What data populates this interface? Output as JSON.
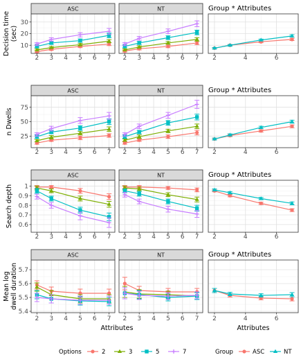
{
  "colors": {
    "2": "#F8766D",
    "3": "#7CAE00",
    "5": "#00BFC4",
    "7": "#C77CFF",
    "ASC": "#F8766D",
    "NT": "#00BFC4"
  },
  "strips": [
    "ASC",
    "NT"
  ],
  "x_axis_title": "Attributes",
  "legends": {
    "options": {
      "title": "Options",
      "items": [
        "2",
        "3",
        "5",
        "7"
      ]
    },
    "group": {
      "title": "Group",
      "items": [
        "ASC",
        "NT"
      ]
    }
  },
  "chart_data": [
    {
      "type": "line",
      "ylabel": [
        "Decision time",
        "(sec)"
      ],
      "ylim": [
        3,
        37
      ],
      "yticks": [
        10,
        20,
        30
      ],
      "xlim": [
        1.6,
        7.4
      ],
      "xticks": [
        2,
        3,
        4,
        5,
        6,
        7
      ],
      "x": [
        2,
        3,
        5,
        7
      ],
      "panels": [
        {
          "strip": "ASC",
          "series": [
            {
              "name": "2",
              "values": [
                4.5,
                6.5,
                9,
                11
              ],
              "errors": [
                0.8,
                0.9,
                1.0,
                1.3
              ]
            },
            {
              "name": "3",
              "values": [
                6,
                8,
                10.5,
                13.5
              ],
              "errors": [
                0.8,
                0.9,
                1.1,
                1.3
              ]
            },
            {
              "name": "5",
              "values": [
                9,
                12,
                14,
                18.5
              ],
              "errors": [
                1.0,
                1.2,
                1.4,
                2.0
              ]
            },
            {
              "name": "7",
              "values": [
                11,
                15,
                19,
                22
              ],
              "errors": [
                1.2,
                1.4,
                1.8,
                2.5
              ]
            }
          ]
        },
        {
          "strip": "NT",
          "series": [
            {
              "name": "2",
              "values": [
                5,
                7,
                9,
                12
              ],
              "errors": [
                0.9,
                1.0,
                1.1,
                1.5
              ]
            },
            {
              "name": "3",
              "values": [
                6,
                8.5,
                12,
                15
              ],
              "errors": [
                0.9,
                1.0,
                1.2,
                1.5
              ]
            },
            {
              "name": "5",
              "values": [
                9,
                12,
                16.5,
                21
              ],
              "errors": [
                1.1,
                1.3,
                1.6,
                2.0
              ]
            },
            {
              "name": "7",
              "values": [
                11,
                16,
                22,
                28.5
              ],
              "errors": [
                1.3,
                1.6,
                2.0,
                2.5
              ]
            }
          ]
        }
      ],
      "group_panel": {
        "title": "Group * Attributes",
        "xlim": [
          1.6,
          7.4
        ],
        "xticks": [
          2,
          4,
          6
        ],
        "x": [
          2,
          3,
          5,
          7
        ],
        "series": [
          {
            "name": "ASC",
            "values": [
              7.5,
              10,
              13,
              15
            ],
            "errors": [
              0.6,
              0.6,
              0.8,
              1.0
            ]
          },
          {
            "name": "NT",
            "values": [
              7.5,
              10,
              14.5,
              18
            ],
            "errors": [
              0.6,
              0.6,
              0.8,
              1.0
            ]
          }
        ]
      }
    },
    {
      "type": "line",
      "ylabel": [
        "n Dwells"
      ],
      "ylim": [
        5,
        95
      ],
      "yticks": [
        25,
        50,
        75
      ],
      "xlim": [
        1.6,
        7.4
      ],
      "xticks": [
        2,
        3,
        4,
        5,
        6,
        7
      ],
      "x": [
        2,
        3,
        5,
        7
      ],
      "panels": [
        {
          "strip": "ASC",
          "series": [
            {
              "name": "2",
              "values": [
                13,
                18,
                22,
                26
              ],
              "errors": [
                2,
                2,
                3,
                3
              ]
            },
            {
              "name": "3",
              "values": [
                17,
                23,
                30,
                37
              ],
              "errors": [
                2,
                3,
                3,
                4
              ]
            },
            {
              "name": "5",
              "values": [
                24,
                32,
                39,
                50
              ],
              "errors": [
                3,
                3,
                4,
                5
              ]
            },
            {
              "name": "7",
              "values": [
                28,
                38,
                52,
                60
              ],
              "errors": [
                3,
                4,
                5,
                6
              ]
            }
          ]
        },
        {
          "strip": "NT",
          "series": [
            {
              "name": "2",
              "values": [
                13,
                18,
                24,
                31
              ],
              "errors": [
                2,
                2,
                3,
                4
              ]
            },
            {
              "name": "3",
              "values": [
                18,
                24,
                34,
                42
              ],
              "errors": [
                2,
                3,
                3,
                4
              ]
            },
            {
              "name": "5",
              "values": [
                24,
                32,
                48,
                58
              ],
              "errors": [
                3,
                3,
                4,
                5
              ]
            },
            {
              "name": "7",
              "values": [
                28,
                42,
                61,
                80
              ],
              "errors": [
                3,
                4,
                5,
                7
              ]
            }
          ]
        }
      ],
      "group_panel": {
        "title": "Group * Attributes",
        "xlim": [
          1.6,
          7.4
        ],
        "xticks": [
          2,
          4,
          6
        ],
        "x": [
          2,
          3,
          5,
          7
        ],
        "series": [
          {
            "name": "ASC",
            "values": [
              20,
              26,
              34,
              42
            ],
            "errors": [
              1.5,
              1.8,
              2,
              2.5
            ]
          },
          {
            "name": "NT",
            "values": [
              20,
              27,
              40,
              50
            ],
            "errors": [
              1.5,
              1.8,
              2,
              2.5
            ]
          }
        ]
      }
    },
    {
      "type": "line",
      "ylabel": [
        "Search depth"
      ],
      "ylim": [
        0.52,
        1.06
      ],
      "yticks": [
        0.6,
        0.7,
        0.8,
        0.9,
        1.0
      ],
      "xlim": [
        1.6,
        7.4
      ],
      "xticks": [
        2,
        3,
        4,
        5,
        6,
        7
      ],
      "x": [
        2,
        3,
        5,
        7
      ],
      "panels": [
        {
          "strip": "ASC",
          "series": [
            {
              "name": "2",
              "values": [
                0.99,
                0.99,
                0.95,
                0.89
              ],
              "errors": [
                0.015,
                0.015,
                0.025,
                0.03
              ]
            },
            {
              "name": "3",
              "values": [
                0.98,
                0.95,
                0.87,
                0.81
              ],
              "errors": [
                0.02,
                0.02,
                0.025,
                0.03
              ]
            },
            {
              "name": "5",
              "values": [
                0.95,
                0.87,
                0.75,
                0.68
              ],
              "errors": [
                0.025,
                0.025,
                0.03,
                0.04
              ]
            },
            {
              "name": "7",
              "values": [
                0.89,
                0.8,
                0.69,
                0.62
              ],
              "errors": [
                0.025,
                0.03,
                0.04,
                0.05
              ]
            }
          ]
        },
        {
          "strip": "NT",
          "series": [
            {
              "name": "2",
              "values": [
                0.99,
                0.99,
                0.98,
                0.96
              ],
              "errors": [
                0.015,
                0.015,
                0.015,
                0.02
              ]
            },
            {
              "name": "3",
              "values": [
                0.98,
                0.97,
                0.91,
                0.86
              ],
              "errors": [
                0.02,
                0.02,
                0.02,
                0.025
              ]
            },
            {
              "name": "5",
              "values": [
                0.95,
                0.92,
                0.84,
                0.77
              ],
              "errors": [
                0.02,
                0.025,
                0.025,
                0.03
              ]
            },
            {
              "name": "7",
              "values": [
                0.91,
                0.84,
                0.76,
                0.71
              ],
              "errors": [
                0.025,
                0.025,
                0.03,
                0.035
              ]
            }
          ]
        }
      ],
      "group_panel": {
        "title": "Group * Attributes",
        "xlim": [
          1.6,
          7.4
        ],
        "xticks": [
          2,
          4,
          6
        ],
        "x": [
          2,
          3,
          5,
          7
        ],
        "series": [
          {
            "name": "ASC",
            "values": [
              0.95,
              0.9,
              0.82,
              0.75
            ],
            "errors": [
              0.01,
              0.012,
              0.012,
              0.015
            ]
          },
          {
            "name": "NT",
            "values": [
              0.96,
              0.93,
              0.87,
              0.82
            ],
            "errors": [
              0.01,
              0.012,
              0.012,
              0.015
            ]
          }
        ]
      }
    },
    {
      "type": "line",
      "ylabel": [
        "Mean log",
        "dwell duration"
      ],
      "ylim": [
        5.39,
        5.77
      ],
      "yticks": [
        5.4,
        5.5,
        5.6,
        5.7
      ],
      "xlim": [
        1.6,
        7.4
      ],
      "xticks": [
        2,
        3,
        4,
        5,
        6,
        7
      ],
      "x": [
        2,
        3,
        5,
        7
      ],
      "panels": [
        {
          "strip": "ASC",
          "series": [
            {
              "name": "2",
              "values": [
                5.59,
                5.545,
                5.53,
                5.53
              ],
              "errors": [
                0.03,
                0.03,
                0.03,
                0.03
              ]
            },
            {
              "name": "3",
              "values": [
                5.575,
                5.52,
                5.49,
                5.49
              ],
              "errors": [
                0.03,
                0.03,
                0.03,
                0.03
              ]
            },
            {
              "name": "5",
              "values": [
                5.52,
                5.49,
                5.475,
                5.47
              ],
              "errors": [
                0.03,
                0.03,
                0.03,
                0.03
              ]
            },
            {
              "name": "7",
              "values": [
                5.5,
                5.49,
                5.48,
                5.48
              ],
              "errors": [
                0.03,
                0.03,
                0.03,
                0.03
              ]
            }
          ]
        },
        {
          "strip": "NT",
          "series": [
            {
              "name": "2",
              "values": [
                5.6,
                5.55,
                5.54,
                5.54
              ],
              "errors": [
                0.045,
                0.03,
                0.025,
                0.025
              ]
            },
            {
              "name": "3",
              "values": [
                5.54,
                5.525,
                5.52,
                5.51
              ],
              "errors": [
                0.04,
                0.03,
                0.025,
                0.025
              ]
            },
            {
              "name": "5",
              "values": [
                5.53,
                5.52,
                5.5,
                5.51
              ],
              "errors": [
                0.04,
                0.03,
                0.025,
                0.025
              ]
            },
            {
              "name": "7",
              "values": [
                5.53,
                5.515,
                5.51,
                5.515
              ],
              "errors": [
                0.04,
                0.03,
                0.025,
                0.025
              ]
            }
          ]
        }
      ],
      "group_panel": {
        "title": "Group * Attributes",
        "xlim": [
          1.6,
          7.4
        ],
        "xticks": [
          2,
          4,
          6
        ],
        "x": [
          2,
          3,
          5,
          7
        ],
        "series": [
          {
            "name": "ASC",
            "values": [
              5.55,
              5.515,
              5.495,
              5.49
            ],
            "errors": [
              0.015,
              0.012,
              0.012,
              0.015
            ]
          },
          {
            "name": "NT",
            "values": [
              5.55,
              5.525,
              5.515,
              5.52
            ],
            "errors": [
              0.015,
              0.012,
              0.012,
              0.015
            ]
          }
        ]
      }
    }
  ]
}
